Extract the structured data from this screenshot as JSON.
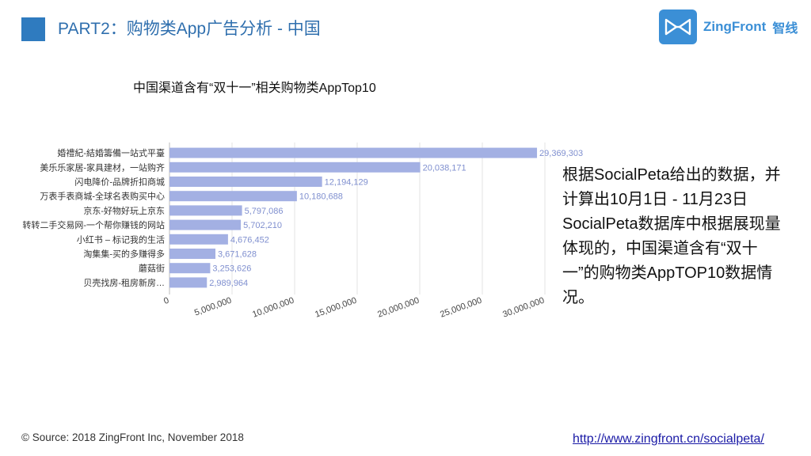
{
  "header": {
    "title": "PART2：购物类App广告分析 - 中国",
    "logo_text": "ZingFront",
    "logo_cn": "智线",
    "logo_icon": "zingfront-bowtie-icon",
    "accent_color": "#2f7bbf"
  },
  "chart_data": {
    "type": "bar",
    "orientation": "horizontal",
    "title": "中国渠道含有“双十一”相关购物类AppTop10",
    "categories": [
      "婚禮紀-結婚籌備一站式平臺",
      "美乐乐家居-家具建材，一站购齐",
      "闪电降价-品牌折扣商城",
      "万表手表商城-全球名表购买中心",
      "京东-好物好玩上京东",
      "转转二手交易网-一个帮你赚钱的网站",
      "小红书 – 标记我的生活",
      "淘集集-买的多赚得多",
      "蘑菇街",
      "贝壳找房-租房新房…"
    ],
    "values": [
      29369303,
      20038171,
      12194129,
      10180688,
      5797086,
      5702210,
      4676452,
      3671628,
      3253626,
      2989964
    ],
    "value_labels": [
      "29,369,303",
      "20,038,171",
      "12,194,129",
      "10,180,688",
      "5,797,086",
      "5,702,210",
      "4,676,452",
      "3,671,628",
      "3,253,626",
      "2,989,964"
    ],
    "xticks": [
      0,
      5000000,
      10000000,
      15000000,
      20000000,
      25000000,
      30000000
    ],
    "xtick_labels": [
      "0",
      "5,000,000",
      "10,000,000",
      "15,000,000",
      "20,000,000",
      "25,000,000",
      "30,000,000"
    ],
    "xlim": [
      0,
      30000000
    ],
    "bar_color": "#a3b0e3",
    "grid": true
  },
  "description": "根据SocialPeta给出的数据，并计算出10月1日 - 11月23日SocialPeta数据库中根据展现量体现的，中国渠道含有“双十一”的购物类AppTOP10数据情况。",
  "footer": {
    "source": "© Source: 2018 ZingFront Inc, November 2018",
    "link": "http://www.zingfront.cn/socialpeta/"
  }
}
